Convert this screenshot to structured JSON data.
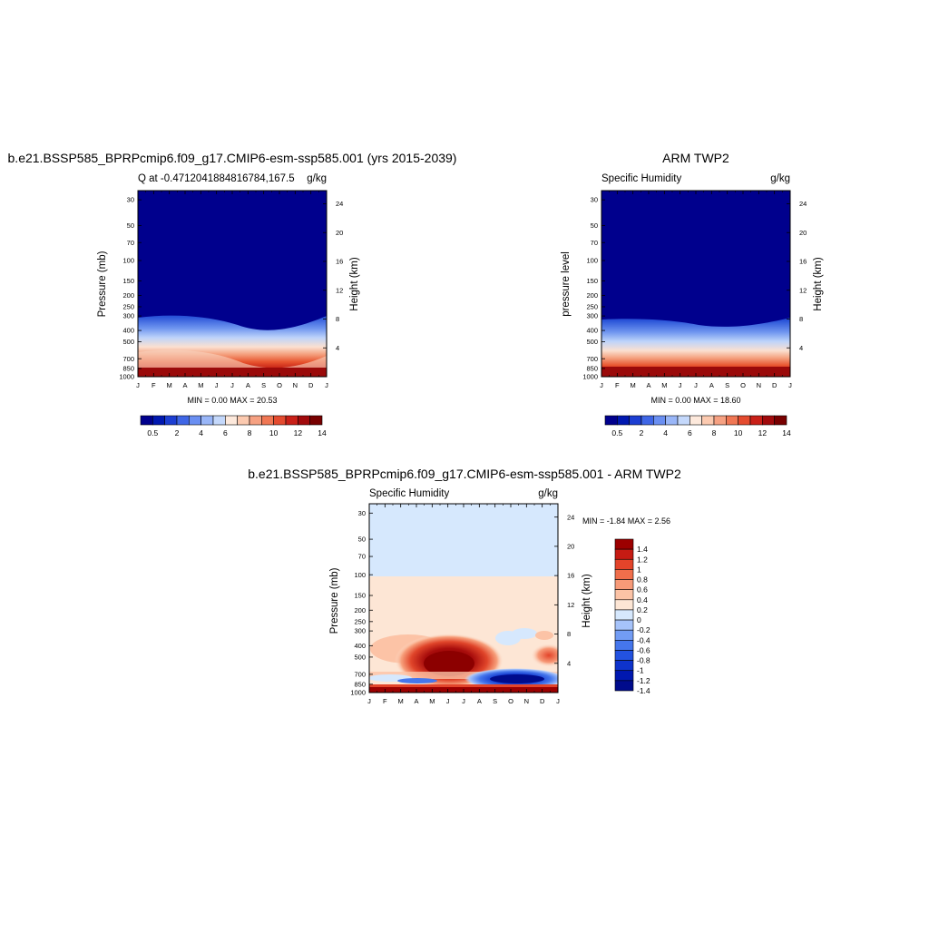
{
  "colors": {
    "abs_scale": [
      "#00008d",
      "#0018b0",
      "#1c3ed2",
      "#3f66e6",
      "#6a8ff2",
      "#99b6f8",
      "#c4d8fb",
      "#fde9dc",
      "#fccab0",
      "#f6a182",
      "#f07754",
      "#e44b2f",
      "#c92018",
      "#a10a0c",
      "#780000"
    ],
    "diff_scale": [
      "#000b8c",
      "#0018b0",
      "#0e33cc",
      "#2352e0",
      "#4576ec",
      "#729cf4",
      "#a6c3fa",
      "#d6e8fd",
      "#fde6d5",
      "#fcc3a6",
      "#f79a78",
      "#f06e4b",
      "#e3442a",
      "#c61b13",
      "#9c0000"
    ]
  },
  "months": [
    "J",
    "F",
    "M",
    "A",
    "M",
    "J",
    "J",
    "A",
    "S",
    "O",
    "N",
    "D",
    "J"
  ],
  "pressure_ticks": [
    "30",
    "50",
    "70",
    "100",
    "150",
    "200",
    "250",
    "300",
    "400",
    "500",
    "700",
    "850",
    "1000"
  ],
  "height_ticks": [
    "24",
    "20",
    "16",
    "12",
    "8",
    "4"
  ],
  "panels": {
    "top_left": {
      "title": "b.e21.BSSP585_BPRPcmip6.f09_g17.CMIP6-esm-ssp585.001 (yrs 2015-2039)",
      "left_label": "Q at -0.4712041884816784,167.5",
      "right_label": "g/kg",
      "y_label": "Pressure (mb)",
      "y2_label": "Height (km)",
      "minmax": "MIN =   0.00 MAX =  20.53"
    },
    "top_right": {
      "title": "ARM TWP2",
      "left_label": "Specific Humidity",
      "right_label": "g/kg",
      "y_label": "pressure level",
      "y2_label": "Height (km)",
      "minmax": "MIN =   0.00 MAX =  18.60"
    },
    "bottom": {
      "title": "b.e21.BSSP585_BPRPcmip6.f09_g17.CMIP6-esm-ssp585.001 - ARM TWP2",
      "left_label": "Specific Humidity",
      "right_label": "g/kg",
      "y_label": "Pressure (mb)",
      "y2_label": "Height (km)",
      "minmax": "MIN =  -1.84 MAX =   2.56"
    }
  },
  "chart_data": [
    {
      "type": "heatmap",
      "title": "b.e21.BSSP585_BPRPcmip6.f09_g17.CMIP6-esm-ssp585.001 (yrs 2015-2039)",
      "variable": "Q at -0.4712041884816784,167.5",
      "units": "g/kg",
      "xlabel": "",
      "ylabel": "Pressure (mb)",
      "y2label": "Height (km)",
      "x_ticks": [
        "J",
        "F",
        "M",
        "A",
        "M",
        "J",
        "J",
        "A",
        "S",
        "O",
        "N",
        "D",
        "J"
      ],
      "y_ticks": [
        30,
        50,
        70,
        100,
        150,
        200,
        250,
        300,
        400,
        500,
        700,
        850,
        1000
      ],
      "y2_ticks": [
        24,
        20,
        16,
        12,
        8,
        4
      ],
      "min": 0.0,
      "max": 20.53,
      "colorbar_labels": [
        "0.5",
        "2",
        "4",
        "6",
        "8",
        "10",
        "12",
        "14"
      ]
    },
    {
      "type": "heatmap",
      "title": "ARM TWP2",
      "variable": "Specific Humidity",
      "units": "g/kg",
      "xlabel": "",
      "ylabel": "pressure level",
      "y2label": "Height (km)",
      "x_ticks": [
        "J",
        "F",
        "M",
        "A",
        "M",
        "J",
        "J",
        "A",
        "S",
        "O",
        "N",
        "D",
        "J"
      ],
      "y_ticks": [
        30,
        50,
        70,
        100,
        150,
        200,
        250,
        300,
        400,
        500,
        700,
        850,
        1000
      ],
      "y2_ticks": [
        24,
        20,
        16,
        12,
        8,
        4
      ],
      "min": 0.0,
      "max": 18.6,
      "colorbar_labels": [
        "0.5",
        "2",
        "4",
        "6",
        "8",
        "10",
        "12",
        "14"
      ]
    },
    {
      "type": "heatmap",
      "title": "b.e21.BSSP585_BPRPcmip6.f09_g17.CMIP6-esm-ssp585.001 - ARM TWP2",
      "variable": "Specific Humidity",
      "units": "g/kg",
      "xlabel": "",
      "ylabel": "Pressure (mb)",
      "y2label": "Height (km)",
      "x_ticks": [
        "J",
        "F",
        "M",
        "A",
        "M",
        "J",
        "J",
        "A",
        "S",
        "O",
        "N",
        "D",
        "J"
      ],
      "y_ticks": [
        30,
        50,
        70,
        100,
        150,
        200,
        250,
        300,
        400,
        500,
        700,
        850,
        1000
      ],
      "y2_ticks": [
        24,
        20,
        16,
        12,
        8,
        4
      ],
      "min": -1.84,
      "max": 2.56,
      "colorbar_labels": [
        "1.4",
        "1.2",
        "1",
        "0.8",
        "0.6",
        "0.4",
        "0.2",
        "0",
        "-0.2",
        "-0.4",
        "-0.6",
        "-0.8",
        "-1",
        "-1.2",
        "-1.4"
      ]
    }
  ]
}
